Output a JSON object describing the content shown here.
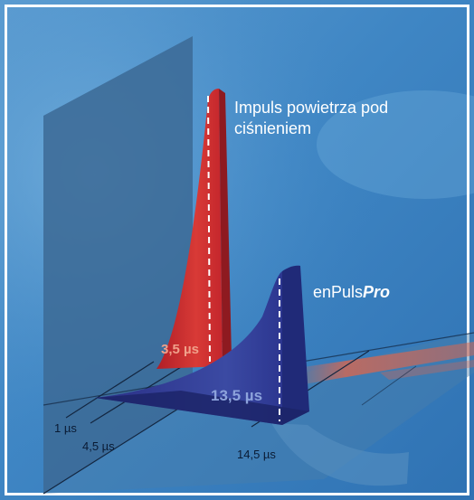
{
  "labels": {
    "air_pulse_line1": "Impuls powietrza pod",
    "air_pulse_line2": "ciśnieniem",
    "enpuls_prefix": "enPuls",
    "enpuls_suffix": "Pro"
  },
  "durations": {
    "air": "3,5 µs",
    "enpuls": "13,5 µs"
  },
  "axis_ticks": [
    "1 µs",
    "4,5 µs",
    "14,5 µs"
  ],
  "colors": {
    "background": "#3f86c4",
    "air_pulse": "#c4262c",
    "enpuls_pulse": "#2b3a8f",
    "text": "#ffffff"
  }
}
